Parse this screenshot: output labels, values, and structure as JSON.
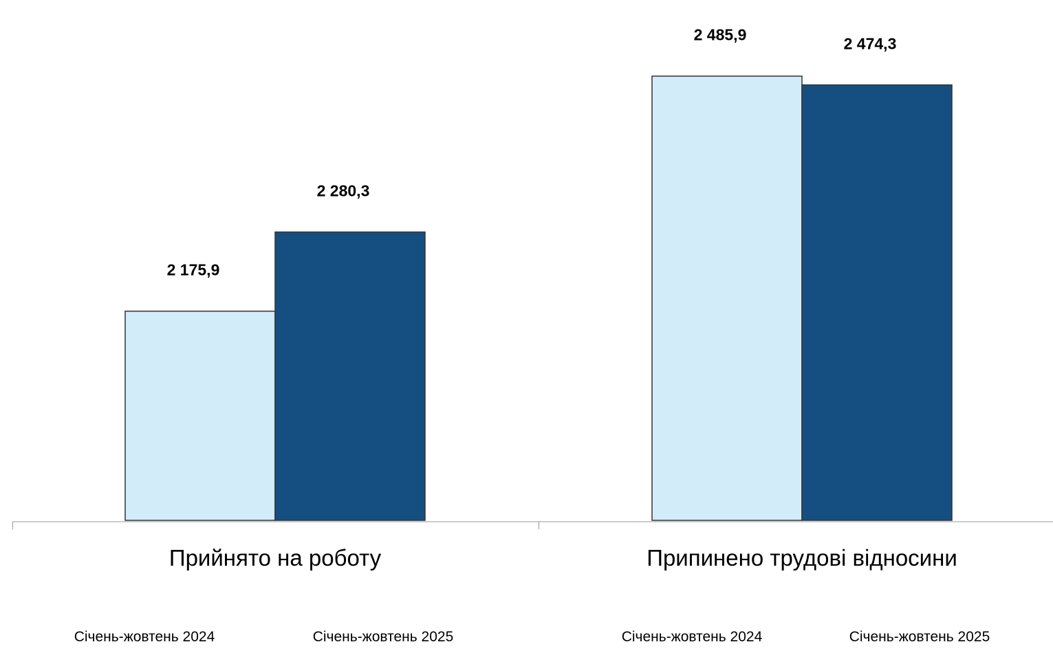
{
  "chart_data": {
    "type": "bar",
    "categories": [
      "Прийнято на роботу",
      "Припинено трудові відносини"
    ],
    "series": [
      {
        "name": "Січень-жовтень 2024",
        "values": [
          2175.9,
          2485.9
        ],
        "labels": [
          "2 175,9",
          "2 485,9"
        ],
        "color": "#d3ecfa"
      },
      {
        "name": "Січень-жовтень 2025",
        "values": [
          2280.3,
          2474.3
        ],
        "labels": [
          "2 280,3",
          "2 474,3"
        ],
        "color": "#154f82"
      }
    ],
    "legend_labels": [
      "Січень-жовтень 2024",
      "Січень-жовтень 2025",
      "Січень-жовтень 2024",
      "Січень-жовтень 2025"
    ],
    "ylim": [
      1900,
      2550
    ],
    "grid": false,
    "axis_color": "#999999",
    "bar_border_color": "#333333"
  }
}
